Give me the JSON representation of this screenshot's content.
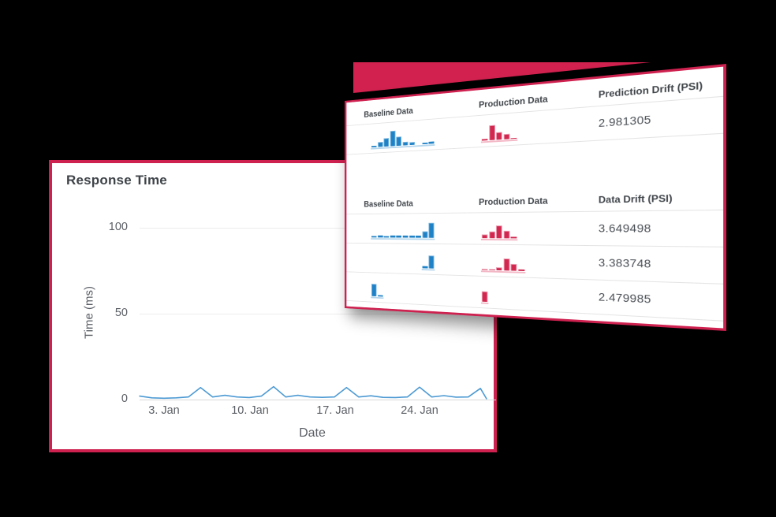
{
  "colors": {
    "background": "#000000",
    "card_bg": "#ffffff",
    "accent": "#ce2150",
    "wedge": "#d2214e",
    "line_blue": "#4d9ad3",
    "bar_blue": "#2082c6",
    "bar_blue_edge": "#7db8e0",
    "bar_blue_base": "#b5d6ec",
    "bar_red": "#d22850",
    "bar_red_edge": "#ea9db2",
    "bar_red_base": "#f3b8c6",
    "grid_line": "#ececec",
    "zero_line": "#d9d9d9",
    "hairline": "#e4e4e4",
    "heading_text": "#3f4449",
    "label_text": "#5a5e64",
    "value_text": "#4a4f55"
  },
  "chart_data": [
    {
      "type": "line",
      "title": "Response Time",
      "xlabel": "Date",
      "ylabel": "Time (ms)",
      "x_tick_labels": [
        "3. Jan",
        "10. Jan",
        "17. Jan",
        "24. Jan"
      ],
      "x_tick_days": [
        3,
        10,
        17,
        24
      ],
      "y_ticks": [
        0,
        50,
        100
      ],
      "ylim": [
        0,
        100
      ],
      "grid": true,
      "legend_position": "none",
      "x_days": [
        1,
        2,
        3,
        4,
        5,
        6,
        7,
        8,
        9,
        10,
        11,
        12,
        13,
        14,
        15,
        16,
        17,
        18,
        19,
        20,
        21,
        22,
        23,
        24,
        25,
        26,
        27,
        28,
        29,
        29.5
      ],
      "values_ms": [
        2,
        1,
        0.8,
        1,
        1.5,
        7,
        1.5,
        2.5,
        1.5,
        1.2,
        2,
        7.5,
        1.5,
        2.5,
        1.5,
        1.3,
        1.5,
        7,
        1.5,
        2.2,
        1.3,
        1.2,
        1.5,
        7.2,
        1.5,
        2.3,
        1.4,
        1.5,
        6.5,
        0.5
      ]
    },
    {
      "type": "table",
      "histogram_height_units": "relative (0-22 scale, estimated from pixels)",
      "sections": [
        {
          "columns": [
            "Baseline Data",
            "Production Data",
            "Prediction Drift (PSI)"
          ],
          "rows": [
            {
              "baseline_hist": [
                2,
                7,
                12,
                22,
                13,
                5,
                4,
                0,
                2,
                3
              ],
              "production_hist": [
                2,
                20,
                10,
                7,
                1
              ],
              "value": "2.981305"
            }
          ]
        },
        {
          "columns": [
            "Baseline Data",
            "Production Data",
            "Data Drift (PSI)"
          ],
          "rows": [
            {
              "baseline_hist": [
                2,
                3,
                2,
                3,
                3,
                3,
                3,
                3,
                9,
                21
              ],
              "production_hist": [
                5,
                9,
                17,
                10,
                2
              ],
              "value": "3.649498"
            },
            {
              "baseline_hist": [
                0,
                0,
                0,
                0,
                0,
                0,
                0,
                0,
                3,
                18
              ],
              "production_hist": [
                1,
                1,
                4,
                16,
                9,
                2
              ],
              "value": "3.383748"
            },
            {
              "baseline_hist": [
                18,
                2
              ],
              "production_hist": [
                14
              ],
              "value": "2.479985"
            }
          ]
        }
      ]
    }
  ]
}
